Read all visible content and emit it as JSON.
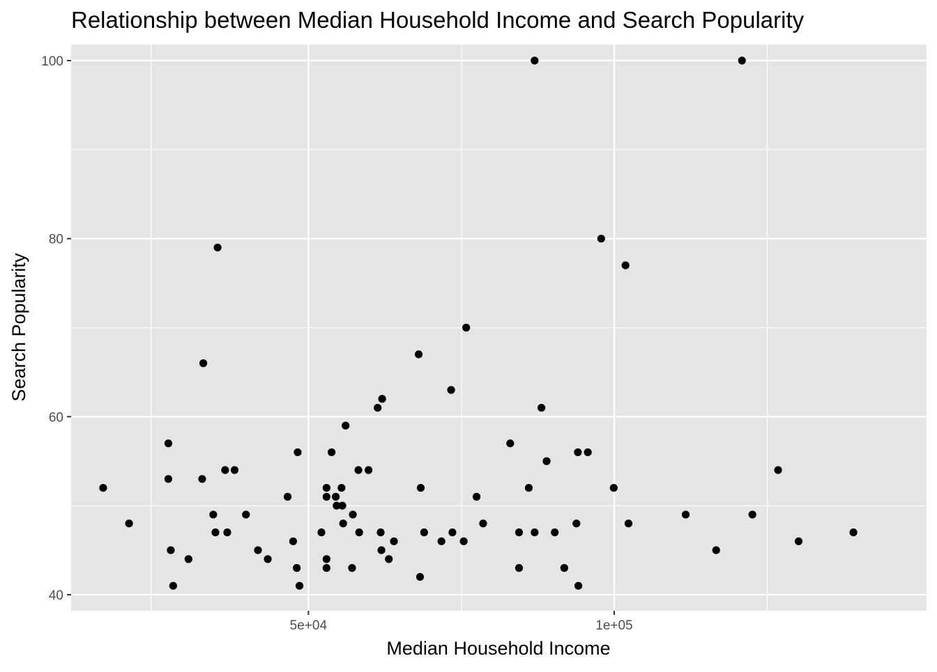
{
  "chart_data": {
    "type": "scatter",
    "title": "Relationship between Median Household Income and Search Popularity",
    "xlabel": "Median Household Income",
    "ylabel": "Search Popularity",
    "x_scale": "log10",
    "xlim": [
      29200,
      203000
    ],
    "ylim": [
      38.2,
      101.8
    ],
    "x_ticks": [
      {
        "value": 50000,
        "label": "5e+04"
      },
      {
        "value": 100000,
        "label": "1e+05"
      }
    ],
    "x_minor_ticks": [
      35000,
      70750,
      141500
    ],
    "y_ticks": [
      {
        "value": 40,
        "label": "40"
      },
      {
        "value": 60,
        "label": "60"
      },
      {
        "value": 80,
        "label": "80"
      },
      {
        "value": 100,
        "label": "100"
      }
    ],
    "y_minor_ticks": [
      50,
      70,
      90
    ],
    "grid": true,
    "legend": "none",
    "colors": {
      "panel": "#e5e5e5",
      "grid": "#ffffff",
      "point": "#000000",
      "tick_text": "#4d4d4d"
    },
    "points": [
      {
        "x": 31400,
        "y": 52
      },
      {
        "x": 33300,
        "y": 48
      },
      {
        "x": 36400,
        "y": 57
      },
      {
        "x": 36400,
        "y": 53
      },
      {
        "x": 36600,
        "y": 45
      },
      {
        "x": 36800,
        "y": 41
      },
      {
        "x": 38100,
        "y": 44
      },
      {
        "x": 39400,
        "y": 66
      },
      {
        "x": 39300,
        "y": 53
      },
      {
        "x": 40300,
        "y": 49
      },
      {
        "x": 40500,
        "y": 47
      },
      {
        "x": 40700,
        "y": 79
      },
      {
        "x": 41400,
        "y": 54
      },
      {
        "x": 41600,
        "y": 47
      },
      {
        "x": 42300,
        "y": 54
      },
      {
        "x": 43400,
        "y": 49
      },
      {
        "x": 44600,
        "y": 45
      },
      {
        "x": 45600,
        "y": 44
      },
      {
        "x": 47700,
        "y": 51
      },
      {
        "x": 48300,
        "y": 46
      },
      {
        "x": 48700,
        "y": 43
      },
      {
        "x": 48800,
        "y": 56
      },
      {
        "x": 49000,
        "y": 41
      },
      {
        "x": 51500,
        "y": 47
      },
      {
        "x": 52100,
        "y": 52
      },
      {
        "x": 52100,
        "y": 51
      },
      {
        "x": 52100,
        "y": 44
      },
      {
        "x": 52100,
        "y": 43
      },
      {
        "x": 52700,
        "y": 56
      },
      {
        "x": 53200,
        "y": 51
      },
      {
        "x": 53300,
        "y": 50
      },
      {
        "x": 53900,
        "y": 52
      },
      {
        "x": 54000,
        "y": 50
      },
      {
        "x": 54100,
        "y": 48
      },
      {
        "x": 54400,
        "y": 59
      },
      {
        "x": 55300,
        "y": 49
      },
      {
        "x": 55200,
        "y": 43
      },
      {
        "x": 56000,
        "y": 54
      },
      {
        "x": 56100,
        "y": 47
      },
      {
        "x": 57300,
        "y": 54
      },
      {
        "x": 58500,
        "y": 61
      },
      {
        "x": 59100,
        "y": 62
      },
      {
        "x": 58900,
        "y": 47
      },
      {
        "x": 59000,
        "y": 45
      },
      {
        "x": 60000,
        "y": 44
      },
      {
        "x": 60700,
        "y": 46
      },
      {
        "x": 64200,
        "y": 67
      },
      {
        "x": 64500,
        "y": 52
      },
      {
        "x": 64400,
        "y": 42
      },
      {
        "x": 65000,
        "y": 47
      },
      {
        "x": 67600,
        "y": 46
      },
      {
        "x": 69100,
        "y": 63
      },
      {
        "x": 69300,
        "y": 47
      },
      {
        "x": 71100,
        "y": 46
      },
      {
        "x": 71500,
        "y": 70
      },
      {
        "x": 73200,
        "y": 51
      },
      {
        "x": 74300,
        "y": 48
      },
      {
        "x": 79000,
        "y": 57
      },
      {
        "x": 80600,
        "y": 47
      },
      {
        "x": 80600,
        "y": 43
      },
      {
        "x": 82400,
        "y": 52
      },
      {
        "x": 83500,
        "y": 100
      },
      {
        "x": 83500,
        "y": 47
      },
      {
        "x": 84800,
        "y": 61
      },
      {
        "x": 85800,
        "y": 55
      },
      {
        "x": 87400,
        "y": 47
      },
      {
        "x": 89300,
        "y": 43
      },
      {
        "x": 91800,
        "y": 48
      },
      {
        "x": 92100,
        "y": 56
      },
      {
        "x": 92200,
        "y": 41
      },
      {
        "x": 94200,
        "y": 56
      },
      {
        "x": 97100,
        "y": 80
      },
      {
        "x": 99900,
        "y": 52
      },
      {
        "x": 102600,
        "y": 77
      },
      {
        "x": 103300,
        "y": 48
      },
      {
        "x": 117600,
        "y": 49
      },
      {
        "x": 126000,
        "y": 45
      },
      {
        "x": 133600,
        "y": 100
      },
      {
        "x": 136800,
        "y": 49
      },
      {
        "x": 145000,
        "y": 54
      },
      {
        "x": 151900,
        "y": 46
      },
      {
        "x": 172000,
        "y": 47
      }
    ]
  }
}
